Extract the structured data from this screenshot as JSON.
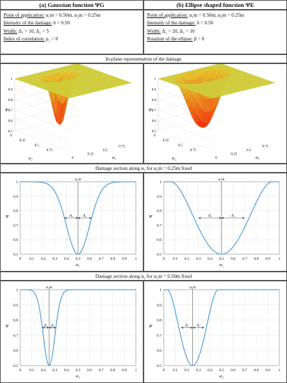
{
  "left_header": "(a) Gaussian function  ΨG",
  "right_header": "(b) Ellipse shaped function  ΨE",
  "left_params": [
    {
      "label": "Point of application:",
      "value": "α₁m = 0.50m,  α₂m = 0.25m"
    },
    {
      "label": "Intensity of the damage:",
      "value": "δ = 0.50"
    },
    {
      "label": "Width:",
      "value": "Δ₁ = 10,  Δ₂ = 5"
    },
    {
      "label": "Index of correlation:",
      "value": "ρ₂ = 0"
    }
  ],
  "right_params": [
    {
      "label": "Point of application:",
      "value": "α₁m = 0.50m,  α₂m = 0.25m"
    },
    {
      "label": "Intensity of the damage:",
      "value": "δ = 0.50"
    },
    {
      "label": "Width:",
      "value": "Δ₁ = 20,  Δ₂ = 10"
    },
    {
      "label": "Rotation of the ellipse:",
      "value": "β = 0"
    }
  ],
  "row_titles": {
    "surface": "In-plane representation of the damage",
    "section1": "Damage section along  α₁  for  α₂m = 0.25m  fixed",
    "section2": "Damage section along  α₂  for  α₁m = 0.50m  fixed"
  },
  "surface_axes": {
    "zlabel": "Ψ",
    "a1": "α₁",
    "a2": "α₂",
    "z_ticks": [
      "0.5",
      "0.6",
      "0.7",
      "0.8",
      "0.9",
      "1"
    ],
    "a_ticks": [
      "0",
      "0.25",
      "0.5",
      "0.75"
    ]
  },
  "chart_data": [
    {
      "type": "line",
      "panel": "left",
      "xlabel": "α₁",
      "ylabel": "Ψ",
      "marker_label": "α₁m",
      "width_labels": [
        "Δ₁",
        "Δ₁"
      ],
      "xlim": [
        0,
        1
      ],
      "ylim": [
        0.5,
        1
      ],
      "x_ticks": [
        "0",
        "0.1",
        "0.2",
        "0.3",
        "0.4",
        "0.5",
        "0.6",
        "0.7",
        "0.8",
        "0.9",
        "1"
      ],
      "y_ticks": [
        "0.5",
        "0.6",
        "0.7",
        "0.8",
        "0.9",
        "1"
      ],
      "center": 0.5,
      "depth": 0.5,
      "sigma": 0.1,
      "shape": "gauss",
      "color": "#2a8fd6"
    },
    {
      "type": "line",
      "panel": "right",
      "xlabel": "α₁",
      "ylabel": "Ψ",
      "marker_label": "α₁m",
      "width_labels": [
        "Δ₁",
        "Δ₁"
      ],
      "xlim": [
        0,
        1
      ],
      "ylim": [
        0.5,
        1
      ],
      "x_ticks": [
        "0",
        "0.1",
        "0.2",
        "0.3",
        "0.4",
        "0.5",
        "0.6",
        "0.7",
        "0.8",
        "0.9",
        "1"
      ],
      "y_ticks": [
        "0.5",
        "0.6",
        "0.7",
        "0.8",
        "0.9",
        "1"
      ],
      "center": 0.5,
      "depth": 0.5,
      "sigma": 0.2,
      "shape": "ellipse",
      "color": "#2a8fd6"
    },
    {
      "type": "line",
      "panel": "left",
      "xlabel": "α₂",
      "ylabel": "Ψ",
      "marker_label": "α₂m",
      "width_labels": [
        "Δ₂",
        "Δ₂"
      ],
      "xlim": [
        0,
        1
      ],
      "ylim": [
        0.5,
        1
      ],
      "x_ticks": [
        "0",
        "0.1",
        "0.2",
        "0.3",
        "0.4",
        "0.5",
        "0.6",
        "0.7",
        "0.8",
        "0.9",
        "1"
      ],
      "y_ticks": [
        "0.5",
        "0.6",
        "0.7",
        "0.8",
        "0.9",
        "1"
      ],
      "center": 0.25,
      "depth": 0.5,
      "sigma": 0.05,
      "shape": "gauss",
      "color": "#2a8fd6"
    },
    {
      "type": "line",
      "panel": "right",
      "xlabel": "α₂",
      "ylabel": "Ψ",
      "marker_label": "α₂m",
      "width_labels": [
        "Δ₂",
        "Δ₂"
      ],
      "xlim": [
        0,
        1
      ],
      "ylim": [
        0.5,
        1
      ],
      "x_ticks": [
        "0",
        "0.1",
        "0.2",
        "0.3",
        "0.4",
        "0.5",
        "0.6",
        "0.7",
        "0.8",
        "0.9",
        "1"
      ],
      "y_ticks": [
        "0.5",
        "0.6",
        "0.7",
        "0.8",
        "0.9",
        "1"
      ],
      "center": 0.25,
      "depth": 0.5,
      "sigma": 0.1,
      "shape": "ellipse",
      "color": "#2a8fd6"
    }
  ]
}
